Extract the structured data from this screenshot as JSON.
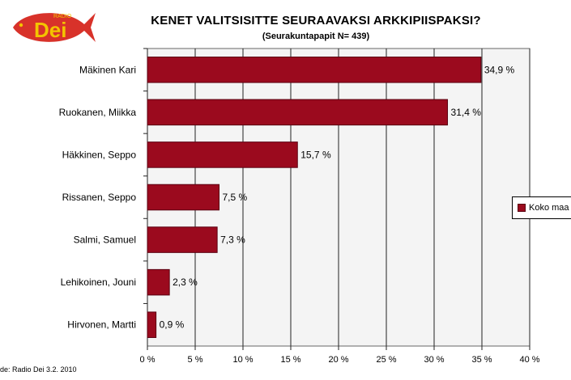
{
  "logo": {
    "radio_text": "RADIO",
    "brand_text": "Dei",
    "colors": {
      "fish": "#d8322a",
      "text": "#f3c400"
    }
  },
  "title": "KENET VALITSISITTE SEURAAVAKSI ARKKIPIISPAKSI?",
  "subtitle": "(Seurakuntapapit N= 439)",
  "source": "de: Radio Dei 3.2. 2010",
  "legend_label": "Koko maa",
  "colors": {
    "bar": "#9b0a1e",
    "bar_stroke": "#5a0010",
    "plot_bg": "#f4f4f4"
  },
  "chart_data": {
    "type": "bar",
    "orientation": "horizontal",
    "title": "KENET VALITSISITTE SEURAAVAKSI ARKKIPIISPAKSI?",
    "subtitle": "(Seurakuntapapit N= 439)",
    "categories": [
      "Mäkinen Kari",
      "Ruokanen, Miikka",
      "Häkkinen, Seppo",
      "Rissanen, Seppo",
      "Salmi, Samuel",
      "Lehikoinen, Jouni",
      "Hirvonen, Martti"
    ],
    "series": [
      {
        "name": "Koko maa",
        "values": [
          34.9,
          31.4,
          15.7,
          7.5,
          7.3,
          2.3,
          0.9
        ],
        "labels": [
          "34,9 %",
          "31,4 %",
          "15,7 %",
          "7,5 %",
          "7,3 %",
          "2,3 %",
          "0,9 %"
        ]
      }
    ],
    "xlim": [
      0,
      40
    ],
    "xticks": [
      0,
      5,
      10,
      15,
      20,
      25,
      30,
      35,
      40
    ],
    "xtick_labels": [
      "0 %",
      "5 %",
      "10 %",
      "15 %",
      "20 %",
      "25 %",
      "30 %",
      "35 %",
      "40 %"
    ],
    "grid": true,
    "legend_position": "right"
  }
}
